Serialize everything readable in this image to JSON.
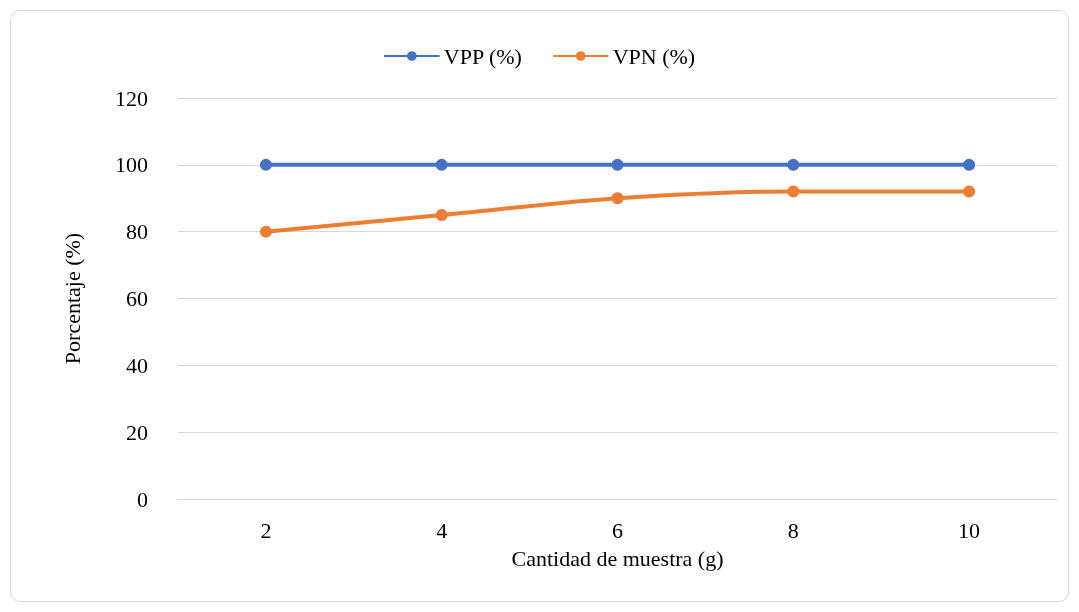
{
  "chart_data": {
    "type": "line",
    "xlabel": "Cantidad de muestra (g)",
    "ylabel": "Porcentaje (%)",
    "categories": [
      "2",
      "4",
      "6",
      "8",
      "10"
    ],
    "series": [
      {
        "name": "VPP (%)",
        "color": "#4472c4",
        "values": [
          100,
          100,
          100,
          100,
          100
        ]
      },
      {
        "name": "VPN (%)",
        "color": "#ed7d31",
        "values": [
          80,
          85,
          90,
          92,
          92
        ]
      }
    ],
    "ylim": [
      0,
      120
    ],
    "yticks": [
      0,
      20,
      40,
      60,
      80,
      100,
      120
    ],
    "grid": "y",
    "legend": "top",
    "marker": "circle",
    "line_style": "solid"
  }
}
